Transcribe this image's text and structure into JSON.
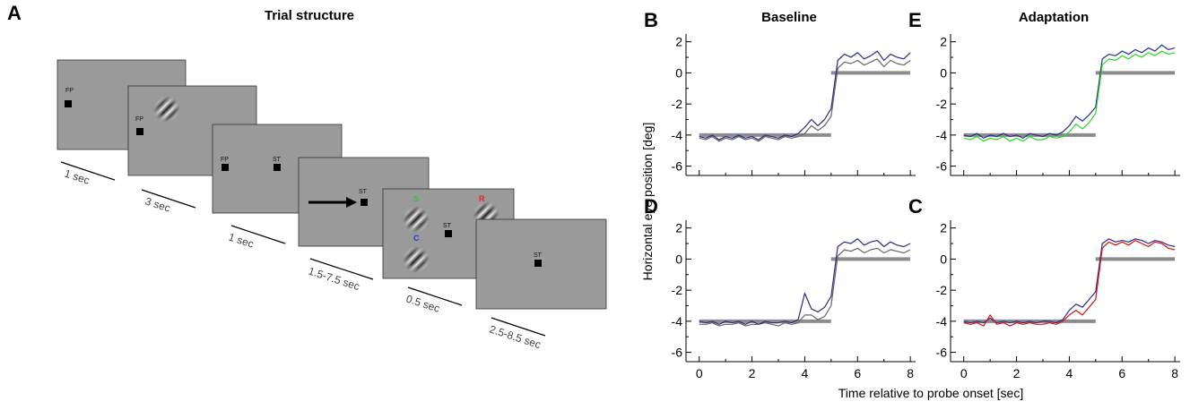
{
  "figure": {
    "ylabel": "Horizontal eye position [deg]",
    "xlabel": "Time relative to probe onset [sec]"
  },
  "diagram": {
    "letter": "A",
    "title": "Trial structure",
    "screens": [
      {
        "labels": [
          "FP"
        ],
        "duration": "1 sec"
      },
      {
        "labels": [
          "FP"
        ],
        "duration": "3 sec"
      },
      {
        "labels": [
          "FP",
          "ST"
        ],
        "duration": "1 sec"
      },
      {
        "labels": [
          "ST"
        ],
        "duration": "1.5-7.5 sec"
      },
      {
        "labels": [
          "S",
          "C",
          "ST",
          "R"
        ],
        "duration": "0.5 sec"
      },
      {
        "labels": [
          "ST"
        ],
        "duration": "2.5-8.5 sec"
      }
    ]
  },
  "chart_data": [
    {
      "type": "line",
      "letter": "B",
      "title": "Baseline",
      "show_xtick_labels": false,
      "x": [
        0,
        0.25,
        0.5,
        0.75,
        1,
        1.25,
        1.5,
        1.75,
        2,
        2.25,
        2.5,
        2.75,
        3,
        3.25,
        3.5,
        3.75,
        4,
        4.25,
        4.5,
        4.75,
        5,
        5.25,
        5.5,
        5.75,
        6,
        6.25,
        6.5,
        6.75,
        7,
        7.25,
        7.5,
        7.75,
        8
      ],
      "xlim": [
        -0.5,
        8.2
      ],
      "ylim": [
        -6.6,
        2.5
      ],
      "xticks": [
        0,
        2,
        4,
        6,
        8
      ],
      "xminor": [
        1,
        3,
        5,
        7
      ],
      "yticks": [
        -6,
        -4,
        -2,
        0,
        2
      ],
      "yminor": [
        -5,
        -3,
        -1,
        1
      ],
      "series": [
        {
          "color": "#8c8c8c",
          "width": 4,
          "x": [
            0,
            5,
            5,
            5,
            8
          ],
          "values": [
            -4,
            -4,
            null,
            0,
            0
          ]
        },
        {
          "color": "#666666",
          "width": 1.2,
          "values": [
            -4.2,
            -4.3,
            -4.1,
            -4.4,
            -4.2,
            -4.3,
            -4.1,
            -4.3,
            -4.2,
            -4.4,
            -4.1,
            -4.2,
            -4.3,
            -4.1,
            -4.2,
            -4.1,
            -3.9,
            -3.4,
            -3.7,
            -3.4,
            -2.8,
            0.3,
            0.7,
            0.6,
            0.8,
            0.5,
            0.7,
            0.9,
            0.4,
            0.8,
            0.6,
            0.5,
            0.8
          ]
        },
        {
          "color": "#2b2b8c",
          "width": 1.2,
          "values": [
            -4.1,
            -4.2,
            -4.0,
            -4.3,
            -4.1,
            -4.2,
            -4.0,
            -4.2,
            -4.1,
            -4.3,
            -4.0,
            -4.1,
            -4.2,
            -4.0,
            -4.1,
            -3.9,
            -3.5,
            -3.0,
            -3.4,
            -3.0,
            -2.3,
            0.8,
            1.2,
            1.0,
            1.3,
            0.9,
            1.1,
            1.4,
            0.8,
            1.2,
            1.0,
            0.9,
            1.3
          ]
        }
      ]
    },
    {
      "type": "line",
      "letter": "E",
      "title": "Adaptation",
      "show_xtick_labels": false,
      "x": [
        0,
        0.25,
        0.5,
        0.75,
        1,
        1.25,
        1.5,
        1.75,
        2,
        2.25,
        2.5,
        2.75,
        3,
        3.25,
        3.5,
        3.75,
        4,
        4.25,
        4.5,
        4.75,
        5,
        5.25,
        5.5,
        5.75,
        6,
        6.25,
        6.5,
        6.75,
        7,
        7.25,
        7.5,
        7.75,
        8
      ],
      "xlim": [
        -0.5,
        8.2
      ],
      "ylim": [
        -6.6,
        2.5
      ],
      "xticks": [
        0,
        2,
        4,
        6,
        8
      ],
      "xminor": [
        1,
        3,
        5,
        7
      ],
      "yticks": [
        -6,
        -4,
        -2,
        0,
        2
      ],
      "yminor": [
        -5,
        -3,
        -1,
        1
      ],
      "series": [
        {
          "color": "#8c8c8c",
          "width": 4,
          "x": [
            0,
            5,
            5,
            5,
            8
          ],
          "values": [
            -4,
            -4,
            null,
            0,
            0
          ]
        },
        {
          "color": "#2b2b8c",
          "width": 1.2,
          "values": [
            -4.0,
            -4.1,
            -3.9,
            -4.2,
            -4.0,
            -4.1,
            -3.9,
            -4.1,
            -4.0,
            -4.2,
            -3.9,
            -4.0,
            -4.1,
            -3.9,
            -4.0,
            -3.8,
            -3.4,
            -2.8,
            -3.1,
            -2.7,
            -2.2,
            0.9,
            1.2,
            1.1,
            1.4,
            1.2,
            1.5,
            1.3,
            1.6,
            1.4,
            1.8,
            1.5,
            1.6
          ]
        },
        {
          "color": "#22dd22",
          "width": 1.2,
          "values": [
            -4.2,
            -4.3,
            -4.1,
            -4.4,
            -4.2,
            -4.3,
            -4.1,
            -4.4,
            -4.2,
            -4.4,
            -4.1,
            -4.3,
            -4.3,
            -4.1,
            -4.2,
            -4.1,
            -3.8,
            -3.3,
            -3.6,
            -3.2,
            -2.6,
            0.5,
            0.9,
            0.8,
            1.1,
            0.9,
            1.2,
            1.0,
            1.3,
            1.1,
            1.4,
            1.2,
            1.3
          ]
        }
      ]
    },
    {
      "type": "line",
      "letter": "D",
      "show_xtick_labels": true,
      "x": [
        0,
        0.25,
        0.5,
        0.75,
        1,
        1.25,
        1.5,
        1.75,
        2,
        2.25,
        2.5,
        2.75,
        3,
        3.25,
        3.5,
        3.75,
        4,
        4.25,
        4.5,
        4.75,
        5,
        5.25,
        5.5,
        5.75,
        6,
        6.25,
        6.5,
        6.75,
        7,
        7.25,
        7.5,
        7.75,
        8
      ],
      "xlim": [
        -0.5,
        8.2
      ],
      "ylim": [
        -6.6,
        2.5
      ],
      "xticks": [
        0,
        2,
        4,
        6,
        8
      ],
      "xminor": [
        1,
        3,
        5,
        7
      ],
      "yticks": [
        -6,
        -4,
        -2,
        0,
        2
      ],
      "yminor": [
        -5,
        -3,
        -1,
        1
      ],
      "series": [
        {
          "color": "#8c8c8c",
          "width": 4,
          "x": [
            0,
            5,
            5,
            5,
            8
          ],
          "values": [
            -4,
            -4,
            null,
            0,
            0
          ]
        },
        {
          "color": "#666666",
          "width": 1.2,
          "values": [
            -4.2,
            -4.2,
            -4.1,
            -4.3,
            -4.2,
            -4.2,
            -4.1,
            -4.3,
            -4.2,
            -4.2,
            -4.1,
            -4.2,
            -4.3,
            -4.1,
            -4.2,
            -4.1,
            -3.6,
            -3.6,
            -3.9,
            -3.7,
            -3.0,
            0.2,
            0.6,
            0.5,
            0.7,
            0.4,
            0.6,
            0.7,
            0.4,
            0.6,
            0.5,
            0.4,
            0.6
          ]
        },
        {
          "color": "#2b2b8c",
          "width": 1.2,
          "values": [
            -4.0,
            -4.1,
            -4.0,
            -4.2,
            -4.0,
            -4.1,
            -4.0,
            -4.2,
            -4.0,
            -4.2,
            -4.0,
            -4.1,
            -4.1,
            -4.0,
            -4.1,
            -3.9,
            -2.2,
            -3.2,
            -3.4,
            -3.1,
            -2.4,
            0.8,
            1.1,
            1.0,
            1.3,
            0.9,
            1.1,
            1.2,
            0.8,
            1.1,
            0.9,
            0.8,
            1.0
          ]
        }
      ]
    },
    {
      "type": "line",
      "letter": "C",
      "show_xtick_labels": true,
      "x": [
        0,
        0.25,
        0.5,
        0.75,
        1,
        1.25,
        1.5,
        1.75,
        2,
        2.25,
        2.5,
        2.75,
        3,
        3.25,
        3.5,
        3.75,
        4,
        4.25,
        4.5,
        4.75,
        5,
        5.25,
        5.5,
        5.75,
        6,
        6.25,
        6.5,
        6.75,
        7,
        7.25,
        7.5,
        7.75,
        8
      ],
      "xlim": [
        -0.5,
        8.2
      ],
      "ylim": [
        -6.6,
        2.5
      ],
      "xticks": [
        0,
        2,
        4,
        6,
        8
      ],
      "xminor": [
        1,
        3,
        5,
        7
      ],
      "yticks": [
        -6,
        -4,
        -2,
        0,
        2
      ],
      "yminor": [
        -5,
        -3,
        -1,
        1
      ],
      "series": [
        {
          "color": "#8c8c8c",
          "width": 4,
          "x": [
            0,
            5,
            5,
            5,
            8
          ],
          "values": [
            -4,
            -4,
            null,
            0,
            0
          ]
        },
        {
          "color": "#2b2b8c",
          "width": 1.2,
          "values": [
            -4.0,
            -4.1,
            -4.0,
            -4.1,
            -3.8,
            -4.1,
            -4.0,
            -4.1,
            -4.0,
            -4.1,
            -4.0,
            -4.1,
            -4.0,
            -4.0,
            -4.1,
            -3.9,
            -3.3,
            -2.9,
            -3.1,
            -2.6,
            -2.1,
            1.0,
            1.3,
            1.1,
            1.2,
            1.1,
            1.3,
            1.2,
            1.0,
            1.2,
            1.1,
            0.9,
            0.8
          ]
        },
        {
          "color": "#dd1111",
          "width": 1.2,
          "values": [
            -4.1,
            -4.2,
            -4.1,
            -4.3,
            -3.6,
            -4.2,
            -4.1,
            -4.3,
            -4.1,
            -4.2,
            -4.1,
            -4.2,
            -4.2,
            -4.1,
            -4.2,
            -4.0,
            -3.6,
            -3.3,
            -3.6,
            -3.1,
            -2.6,
            0.7,
            1.1,
            0.9,
            1.1,
            0.9,
            1.2,
            1.0,
            0.8,
            1.1,
            1.0,
            0.7,
            0.6
          ]
        }
      ]
    }
  ]
}
